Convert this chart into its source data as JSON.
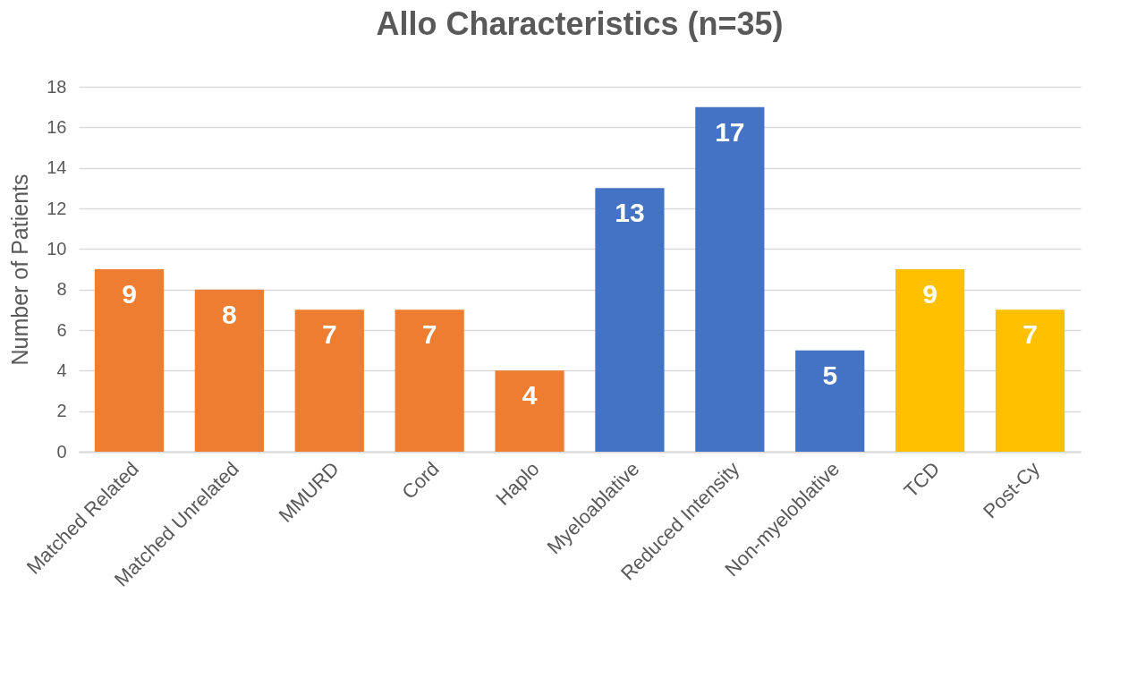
{
  "chart_data": {
    "type": "bar",
    "title": "Allo Characteristics (n=35)",
    "ylabel": "Number of Patients",
    "categories": [
      "Matched Related",
      "Matched Unrelated",
      "MMURD",
      "Cord",
      "Haplo",
      "Myeloablative",
      "Reduced Intensity",
      "Non-myeloblative",
      "TCD",
      "Post-Cy"
    ],
    "values": [
      9,
      8,
      7,
      7,
      4,
      13,
      17,
      5,
      9,
      7
    ],
    "colors": [
      "#ed7d31",
      "#ed7d31",
      "#ed7d31",
      "#ed7d31",
      "#ed7d31",
      "#4472c4",
      "#4472c4",
      "#4472c4",
      "#ffc000",
      "#ffc000"
    ],
    "ylim": [
      0,
      18
    ],
    "yticks": [
      0,
      2,
      4,
      6,
      8,
      10,
      12,
      14,
      16,
      18
    ],
    "grid": "y",
    "data_labels": true
  }
}
